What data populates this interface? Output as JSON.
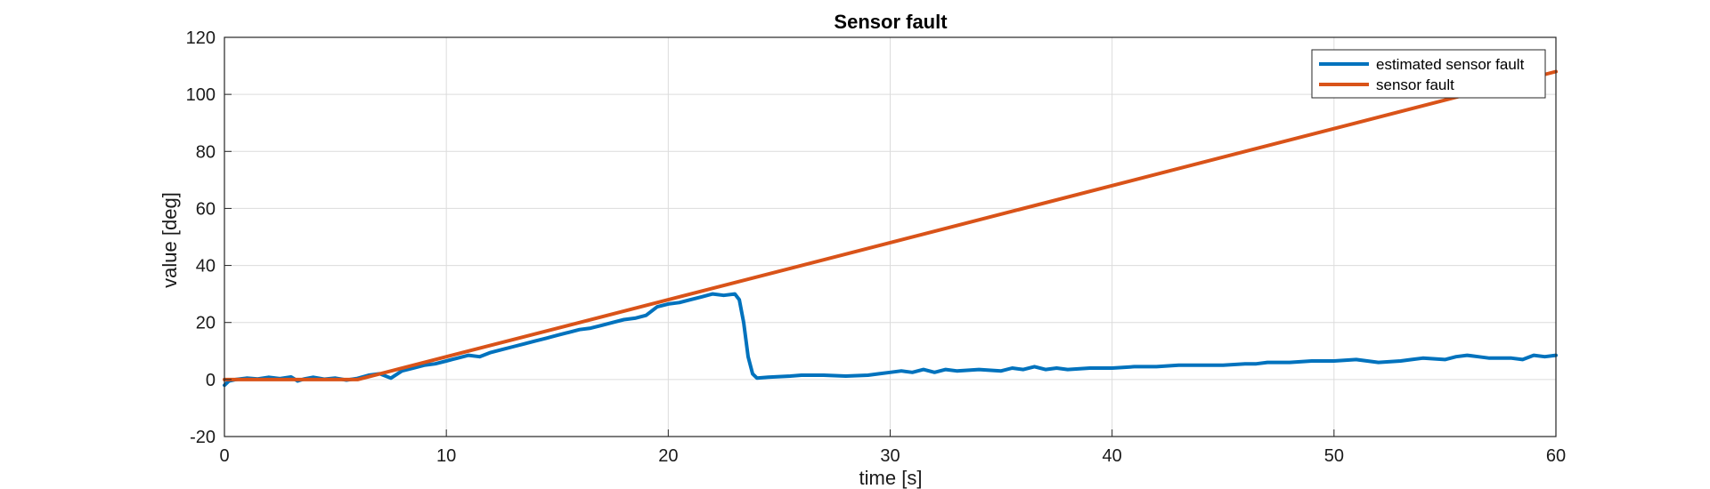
{
  "chart_data": {
    "type": "line",
    "title": "Sensor fault",
    "xlabel": "time [s]",
    "ylabel": "value [deg]",
    "xlim": [
      0,
      60
    ],
    "ylim": [
      -20,
      120
    ],
    "xticks": [
      0,
      10,
      20,
      30,
      40,
      50,
      60
    ],
    "yticks": [
      -20,
      0,
      20,
      40,
      60,
      80,
      100,
      120
    ],
    "grid": true,
    "legend_position": "top-right",
    "series": [
      {
        "name": "estimated sensor fault",
        "color": "#0072BD",
        "x": [
          0,
          0.2,
          0.5,
          1,
          1.5,
          2,
          2.5,
          3,
          3.3,
          3.6,
          4,
          4.5,
          5,
          5.5,
          6,
          6.5,
          7,
          7.5,
          8,
          8.5,
          9,
          9.5,
          10,
          10.5,
          11,
          11.5,
          12,
          12.5,
          13,
          13.5,
          14,
          14.5,
          15,
          15.5,
          16,
          16.5,
          17,
          17.5,
          18,
          18.5,
          19,
          19.5,
          20,
          20.5,
          21,
          21.5,
          22,
          22.5,
          23,
          23.2,
          23.4,
          23.6,
          23.8,
          24,
          24.5,
          25,
          25.5,
          26,
          27,
          28,
          29,
          29.5,
          30,
          30.5,
          31,
          31.5,
          32,
          32.5,
          33,
          34,
          35,
          35.5,
          36,
          36.5,
          37,
          37.5,
          38,
          39,
          40,
          41,
          42,
          43,
          44,
          45,
          46,
          46.5,
          47,
          48,
          49,
          50,
          51,
          51.5,
          52,
          53,
          53.5,
          54,
          55,
          55.5,
          56,
          56.5,
          57,
          58,
          58.5,
          59,
          59.5,
          60
        ],
        "y": [
          -2,
          -0.5,
          0,
          0.5,
          0.2,
          0.8,
          0.3,
          0.9,
          -0.5,
          0.2,
          0.8,
          0.1,
          0.5,
          -0.2,
          0.4,
          1.5,
          2,
          0.5,
          3,
          4,
          5,
          5.5,
          6.5,
          7.5,
          8.5,
          8,
          9.5,
          10.5,
          11.5,
          12.5,
          13.5,
          14.5,
          15.5,
          16.5,
          17.5,
          18,
          19,
          20,
          21,
          21.5,
          22.5,
          25.5,
          26.5,
          27,
          28,
          29,
          30,
          29.5,
          30,
          28,
          20,
          8,
          2,
          0.5,
          0.8,
          1,
          1.2,
          1.5,
          1.5,
          1.2,
          1.5,
          2,
          2.5,
          3,
          2.5,
          3.5,
          2.5,
          3.5,
          3,
          3.5,
          3,
          4,
          3.5,
          4.5,
          3.5,
          4,
          3.5,
          4,
          4,
          4.5,
          4.5,
          5,
          5,
          5,
          5.5,
          5.5,
          6,
          6,
          6.5,
          6.5,
          7,
          6.5,
          6,
          6.5,
          7,
          7.5,
          7,
          8,
          8.5,
          8,
          7.5,
          7.5,
          7,
          8.5,
          8,
          8.5
        ]
      },
      {
        "name": "sensor fault",
        "color": "#D95319",
        "x": [
          0,
          6,
          60
        ],
        "y": [
          0,
          0,
          108
        ]
      }
    ]
  }
}
